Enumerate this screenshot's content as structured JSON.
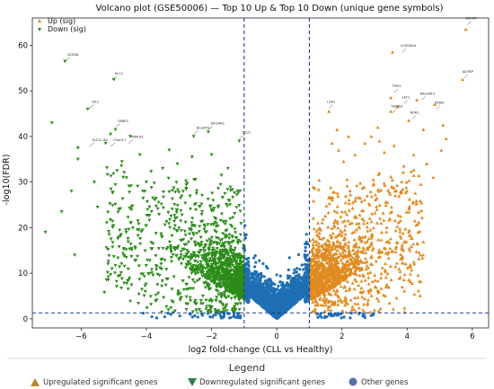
{
  "chart_data": {
    "type": "scatter",
    "title": "Volcano plot (GSE50006) — Top 10 Up & Top 10 Down (unique gene symbols)",
    "xlabel": "log2 fold-change (CLL vs Healthy)",
    "ylabel": "-log10(FDR)",
    "xlim": [
      -7.5,
      6.5
    ],
    "ylim": [
      -2,
      66
    ],
    "xticks": [
      -6,
      -4,
      -2,
      0,
      2,
      4,
      6
    ],
    "yticks": [
      0,
      10,
      20,
      30,
      40,
      50,
      60
    ],
    "thresholds": {
      "log2fc": [
        -1,
        1
      ],
      "neg_log10_fdr": 1.3
    },
    "grid": false,
    "legend_inner": {
      "position": "top-left",
      "entries": [
        {
          "label": "Up (sig)",
          "marker": "triangle-up",
          "color": "#d4892a"
        },
        {
          "label": "Down (sig)",
          "marker": "triangle-down",
          "color": "#2e7d32"
        }
      ]
    },
    "legend_outer": {
      "title": "Legend",
      "entries": [
        {
          "label": "Upregulated significant genes",
          "marker": "triangle-up",
          "color": "#b8892b"
        },
        {
          "label": "Downregulated significant genes",
          "marker": "triangle-down",
          "color": "#2e7d4f"
        },
        {
          "label": "Other genes",
          "marker": "circle",
          "color": "#5870a8"
        }
      ]
    },
    "series": [
      {
        "name": "Up (sig)",
        "color": "#e08a1f",
        "edge_color": "#c8941f"
      },
      {
        "name": "Down (sig)",
        "color": "#2c8c1a",
        "edge_color": "#2c8c1a"
      },
      {
        "name": "Other",
        "color": "#1f6fb4"
      }
    ],
    "labeled_genes": [
      {
        "name": "SCN3A",
        "x": -6.5,
        "y": 56.5,
        "side": "down"
      },
      {
        "name": "KLC1",
        "x": -5.05,
        "y": 52.4,
        "side": "down"
      },
      {
        "name": "ISL1",
        "x": -5.75,
        "y": 46.2,
        "side": "down"
      },
      {
        "name": "FABP3",
        "x": -4.95,
        "y": 42.0,
        "side": "down"
      },
      {
        "name": "SLC2L-4A",
        "x": -5.75,
        "y": 37.8,
        "side": "down"
      },
      {
        "name": "Chorf17",
        "x": -5.1,
        "y": 37.8,
        "side": "down"
      },
      {
        "name": "PNPLA1",
        "x": -4.55,
        "y": 38.5,
        "side": "down"
      },
      {
        "name": "DLGAP3",
        "x": -2.55,
        "y": 40.5,
        "side": "down"
      },
      {
        "name": "EIF2AK3",
        "x": -2.1,
        "y": 41.5,
        "side": "down"
      },
      {
        "name": "CCL5",
        "x": -1.15,
        "y": 39.5,
        "side": "down"
      },
      {
        "name": "ABCA6",
        "x": 5.85,
        "y": 64.5,
        "side": "up"
      },
      {
        "name": "CCDC80A",
        "x": 3.85,
        "y": 58.5,
        "side": "up"
      },
      {
        "name": "ADTRP",
        "x": 5.75,
        "y": 52.8,
        "side": "up"
      },
      {
        "name": "TPM1",
        "x": 3.6,
        "y": 49.6,
        "side": "up"
      },
      {
        "name": "RASGRF1",
        "x": 4.45,
        "y": 48.0,
        "side": "up"
      },
      {
        "name": "LEF1",
        "x": 3.9,
        "y": 47.2,
        "side": "up"
      },
      {
        "name": "LAX1",
        "x": 1.6,
        "y": 46.2,
        "side": "up"
      },
      {
        "name": "TSPAN1",
        "x": 3.55,
        "y": 45.2,
        "side": "up"
      },
      {
        "name": "PXDN",
        "x": 4.9,
        "y": 46.0,
        "side": "up"
      },
      {
        "name": "ROR1",
        "x": 4.15,
        "y": 43.8,
        "side": "up"
      }
    ],
    "outlier_points": {
      "up": [
        [
          5.8,
          63.5
        ],
        [
          3.55,
          58.5
        ],
        [
          5.7,
          52.5
        ],
        [
          3.5,
          48.5
        ],
        [
          4.3,
          48.0
        ],
        [
          3.7,
          46.5
        ],
        [
          1.6,
          45.5
        ],
        [
          3.5,
          45.5
        ],
        [
          4.85,
          47.0
        ],
        [
          4.05,
          43.5
        ],
        [
          2.9,
          40.0
        ],
        [
          3.15,
          39.0
        ],
        [
          2.7,
          38.5
        ],
        [
          3.6,
          38.0
        ],
        [
          4.2,
          36.0
        ],
        [
          2.4,
          36.0
        ],
        [
          1.9,
          37.0
        ],
        [
          5.05,
          37.0
        ],
        [
          4.6,
          34.0
        ],
        [
          3.9,
          33.5
        ],
        [
          5.2,
          39.5
        ],
        [
          2.2,
          40.0
        ],
        [
          1.7,
          38.5
        ],
        [
          4.5,
          41.5
        ],
        [
          5.1,
          42.5
        ],
        [
          3.3,
          36.5
        ],
        [
          2.05,
          34.5
        ],
        [
          4.8,
          31.0
        ],
        [
          3.1,
          42.0
        ],
        [
          1.85,
          41.5
        ]
      ],
      "down": [
        [
          -6.5,
          56.5
        ],
        [
          -5.0,
          52.5
        ],
        [
          -5.8,
          46.0
        ],
        [
          -4.95,
          41.5
        ],
        [
          -6.9,
          43.0
        ],
        [
          -6.1,
          37.5
        ],
        [
          -5.25,
          38.5
        ],
        [
          -5.1,
          40.5
        ],
        [
          -4.5,
          40.0
        ],
        [
          -2.55,
          40.0
        ],
        [
          -2.1,
          41.0
        ],
        [
          -1.15,
          39.0
        ],
        [
          -6.1,
          35.0
        ],
        [
          -4.2,
          36.0
        ],
        [
          -3.05,
          34.0
        ],
        [
          -1.5,
          33.0
        ],
        [
          -5.6,
          30.0
        ],
        [
          -6.3,
          28.0
        ],
        [
          -4.9,
          32.5
        ],
        [
          -3.5,
          33.0
        ],
        [
          -2.0,
          36.0
        ],
        [
          -4.0,
          30.0
        ],
        [
          -1.7,
          31.5
        ],
        [
          -6.2,
          14.0
        ],
        [
          -7.1,
          19.0
        ],
        [
          -6.6,
          23.5
        ],
        [
          -5.5,
          24.5
        ],
        [
          -4.75,
          34.5
        ],
        [
          -3.3,
          37.0
        ],
        [
          -2.6,
          35.5
        ]
      ]
    }
  }
}
